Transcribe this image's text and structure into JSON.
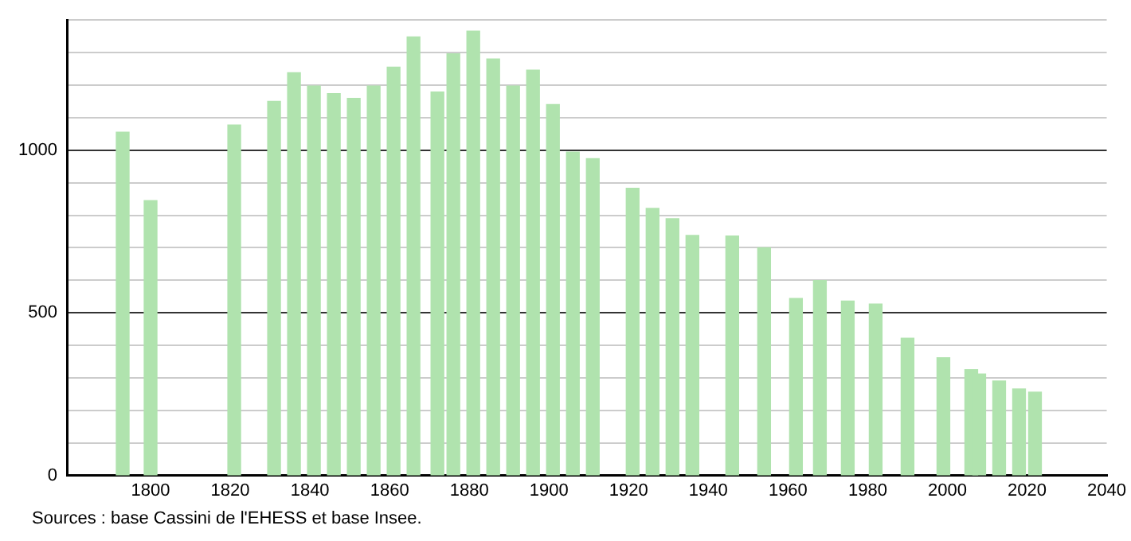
{
  "chart_data": {
    "type": "bar",
    "color": "#b0e3ae",
    "x": [
      1793,
      1800,
      1821,
      1831,
      1836,
      1841,
      1846,
      1851,
      1856,
      1861,
      1866,
      1872,
      1876,
      1881,
      1886,
      1891,
      1896,
      1901,
      1906,
      1911,
      1921,
      1926,
      1931,
      1936,
      1946,
      1954,
      1962,
      1968,
      1975,
      1982,
      1990,
      1999,
      2006,
      2008,
      2013,
      2018,
      2022
    ],
    "values": [
      1055,
      845,
      1077,
      1150,
      1238,
      1197,
      1174,
      1159,
      1197,
      1255,
      1348,
      1179,
      1296,
      1366,
      1280,
      1197,
      1246,
      1140,
      994,
      974,
      883,
      821,
      789,
      738,
      736,
      700,
      544,
      599,
      536,
      527,
      422,
      362,
      325,
      312,
      290,
      266,
      256
    ],
    "xlim": [
      1779,
      2040
    ],
    "xticks": [
      1800,
      1820,
      1840,
      1860,
      1880,
      1900,
      1920,
      1940,
      1960,
      1980,
      2000,
      2020,
      2040
    ],
    "ylim": [
      0,
      1400
    ],
    "yticks": [
      0,
      {
        "value": 100,
        "label": null
      },
      {
        "value": 200,
        "label": null
      },
      {
        "value": 300,
        "label": null
      },
      {
        "value": 400,
        "label": null
      },
      500,
      {
        "value": 600,
        "label": null
      },
      {
        "value": 700,
        "label": null
      },
      {
        "value": 800,
        "label": null
      },
      {
        "value": 900,
        "label": null
      },
      1000,
      {
        "value": 1100,
        "label": null
      },
      {
        "value": 1200,
        "label": null
      },
      {
        "value": 1300,
        "label": null
      },
      {
        "value": 1400,
        "label": null
      }
    ],
    "grid": "y",
    "annotations": [
      "Sources : base Cassini de l'EHESS et base Insee."
    ]
  }
}
